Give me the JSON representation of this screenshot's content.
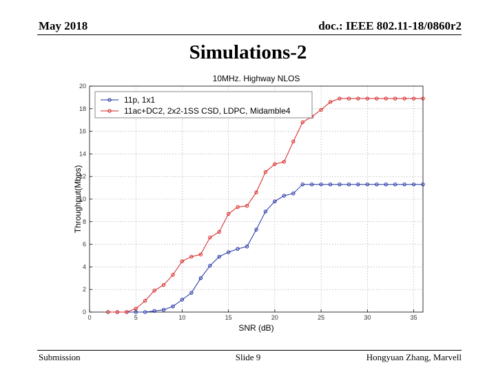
{
  "header": {
    "date": "May 2018",
    "doc": "doc.: IEEE 802.11-18/0860r2"
  },
  "slide": {
    "title": "Simulations-2"
  },
  "footer": {
    "left": "Submission",
    "center": "Slide 9",
    "right": "Hongyuan Zhang, Marvell"
  },
  "chart_data": {
    "type": "line",
    "title": "10MHz. Highway NLOS",
    "xlabel": "SNR (dB)",
    "ylabel": "Throughput(Mbps)",
    "xlim": [
      0,
      36
    ],
    "ylim": [
      0,
      20
    ],
    "xticks": [
      0,
      5,
      10,
      15,
      20,
      25,
      30,
      35
    ],
    "yticks": [
      0,
      2,
      4,
      6,
      8,
      10,
      12,
      14,
      16,
      18,
      20
    ],
    "grid": true,
    "legend_position": "top-left",
    "colors": {
      "s1": "#1c2fa0",
      "s2": "#d62020"
    },
    "x": [
      2,
      3,
      4,
      5,
      6,
      7,
      8,
      9,
      10,
      11,
      12,
      13,
      14,
      15,
      16,
      17,
      18,
      19,
      20,
      21,
      22,
      23,
      24,
      25,
      26,
      27,
      28,
      29,
      30,
      31,
      32,
      33,
      34,
      35,
      36
    ],
    "series": [
      {
        "name": "11p, 1x1",
        "values": [
          0,
          0,
          0,
          0,
          0,
          0.1,
          0.2,
          0.5,
          1.1,
          1.7,
          3.0,
          4.1,
          4.9,
          5.3,
          5.6,
          5.8,
          7.3,
          8.9,
          9.8,
          10.3,
          10.5,
          11.3,
          11.3,
          11.3,
          11.3,
          11.3,
          11.3,
          11.3,
          11.3,
          11.3,
          11.3,
          11.3,
          11.3,
          11.3,
          11.3
        ]
      },
      {
        "name": "11ac+DC2, 2x2-1SS CSD, LDPC, Midamble4",
        "values": [
          0,
          0,
          0,
          0.3,
          1.0,
          1.9,
          2.4,
          3.3,
          4.5,
          4.9,
          5.1,
          6.6,
          7.1,
          8.7,
          9.3,
          9.4,
          10.6,
          12.4,
          13.1,
          13.3,
          15.1,
          16.8,
          17.3,
          17.9,
          18.6,
          18.9,
          18.9,
          18.9,
          18.9,
          18.9,
          18.9,
          18.9,
          18.9,
          18.9,
          18.9
        ]
      }
    ]
  }
}
